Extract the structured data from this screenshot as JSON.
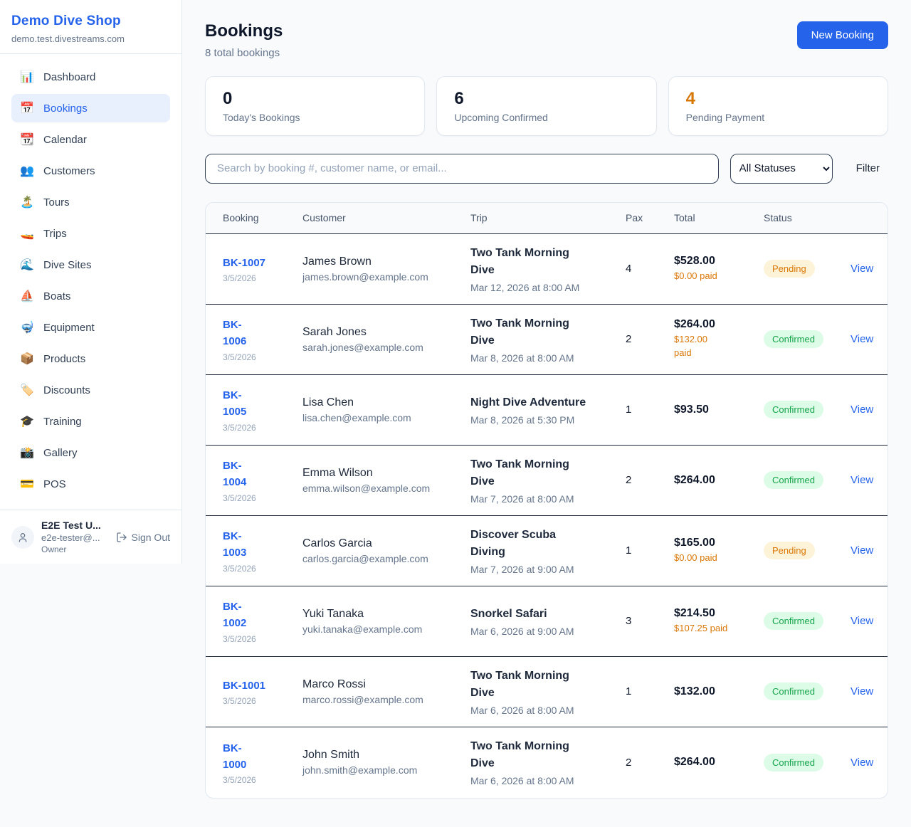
{
  "colors": {
    "accent_blue": "#2563eb",
    "pending_orange": "#d97706",
    "confirmed_green": "#16a34a",
    "page_bg": "#f8fafc"
  },
  "sidebar": {
    "brand": {
      "name": "Demo Dive Shop",
      "domain": "demo.test.divestreams.com"
    },
    "nav": [
      {
        "label": "Dashboard",
        "icon": "📊",
        "active": false
      },
      {
        "label": "Bookings",
        "icon": "📅",
        "active": true
      },
      {
        "label": "Calendar",
        "icon": "📆",
        "active": false
      },
      {
        "label": "Customers",
        "icon": "👥",
        "active": false
      },
      {
        "label": "Tours",
        "icon": "🏝️",
        "active": false
      },
      {
        "label": "Trips",
        "icon": "🚤",
        "active": false
      },
      {
        "label": "Dive Sites",
        "icon": "🌊",
        "active": false
      },
      {
        "label": "Boats",
        "icon": "⛵",
        "active": false
      },
      {
        "label": "Equipment",
        "icon": "🤿",
        "active": false
      },
      {
        "label": "Products",
        "icon": "📦",
        "active": false
      },
      {
        "label": "Discounts",
        "icon": "🏷️",
        "active": false
      },
      {
        "label": "Training",
        "icon": "🎓",
        "active": false
      },
      {
        "label": "Gallery",
        "icon": "📸",
        "active": false
      },
      {
        "label": "POS",
        "icon": "💳",
        "active": false
      }
    ],
    "user": {
      "name": "E2E Test U...",
      "email": "e2e-tester@...",
      "role": "Owner",
      "sign_out_label": "Sign Out"
    }
  },
  "header": {
    "title": "Bookings",
    "subtitle": "8 total bookings",
    "new_booking_label": "New Booking"
  },
  "stats": [
    {
      "value": "0",
      "label": "Today's Bookings"
    },
    {
      "value": "6",
      "label": "Upcoming Confirmed"
    },
    {
      "value": "4",
      "label": "Pending Payment"
    }
  ],
  "controls": {
    "search_placeholder": "Search by booking #, customer name, or email...",
    "status_filter_value": "All Statuses",
    "filter_label": "Filter"
  },
  "table": {
    "columns": [
      "Booking",
      "Customer",
      "Trip",
      "Pax",
      "Total",
      "Status"
    ],
    "view_label": "View",
    "rows": [
      {
        "id": "BK-1007",
        "date": "3/5/2026",
        "customer": "James Brown",
        "email": "james.brown@example.com",
        "trip": "Two Tank Morning\nDive",
        "trip_datetime": "Mar 12, 2026 at 8:00 AM",
        "pax": "4",
        "total": "$528.00",
        "paid": "$0.00 paid",
        "status": "Pending"
      },
      {
        "id": "BK-\n1006",
        "date": "3/5/2026",
        "customer": "Sarah Jones",
        "email": "sarah.jones@example.com",
        "trip": "Two Tank Morning\nDive",
        "trip_datetime": "Mar 8, 2026 at 8:00 AM",
        "pax": "2",
        "total": "$264.00",
        "paid": "$132.00\npaid",
        "status": "Confirmed"
      },
      {
        "id": "BK-\n1005",
        "date": "3/5/2026",
        "customer": "Lisa Chen",
        "email": "lisa.chen@example.com",
        "trip": "Night Dive Adventure",
        "trip_datetime": "Mar 8, 2026 at 5:30 PM",
        "pax": "1",
        "total": "$93.50",
        "paid": "",
        "status": "Confirmed"
      },
      {
        "id": "BK-\n1004",
        "date": "3/5/2026",
        "customer": "Emma Wilson",
        "email": "emma.wilson@example.com",
        "trip": "Two Tank Morning\nDive",
        "trip_datetime": "Mar 7, 2026 at 8:00 AM",
        "pax": "2",
        "total": "$264.00",
        "paid": "",
        "status": "Confirmed"
      },
      {
        "id": "BK-\n1003",
        "date": "3/5/2026",
        "customer": "Carlos Garcia",
        "email": "carlos.garcia@example.com",
        "trip": "Discover Scuba\nDiving",
        "trip_datetime": "Mar 7, 2026 at 9:00 AM",
        "pax": "1",
        "total": "$165.00",
        "paid": "$0.00 paid",
        "status": "Pending"
      },
      {
        "id": "BK-\n1002",
        "date": "3/5/2026",
        "customer": "Yuki Tanaka",
        "email": "yuki.tanaka@example.com",
        "trip": "Snorkel Safari",
        "trip_datetime": "Mar 6, 2026 at 9:00 AM",
        "pax": "3",
        "total": "$214.50",
        "paid": "$107.25 paid",
        "status": "Confirmed"
      },
      {
        "id": "BK-1001",
        "date": "3/5/2026",
        "customer": "Marco Rossi",
        "email": "marco.rossi@example.com",
        "trip": "Two Tank Morning\nDive",
        "trip_datetime": "Mar 6, 2026 at 8:00 AM",
        "pax": "1",
        "total": "$132.00",
        "paid": "",
        "status": "Confirmed"
      },
      {
        "id": "BK-\n1000",
        "date": "3/5/2026",
        "customer": "John Smith",
        "email": "john.smith@example.com",
        "trip": "Two Tank Morning\nDive",
        "trip_datetime": "Mar 6, 2026 at 8:00 AM",
        "pax": "2",
        "total": "$264.00",
        "paid": "",
        "status": "Confirmed"
      }
    ]
  }
}
